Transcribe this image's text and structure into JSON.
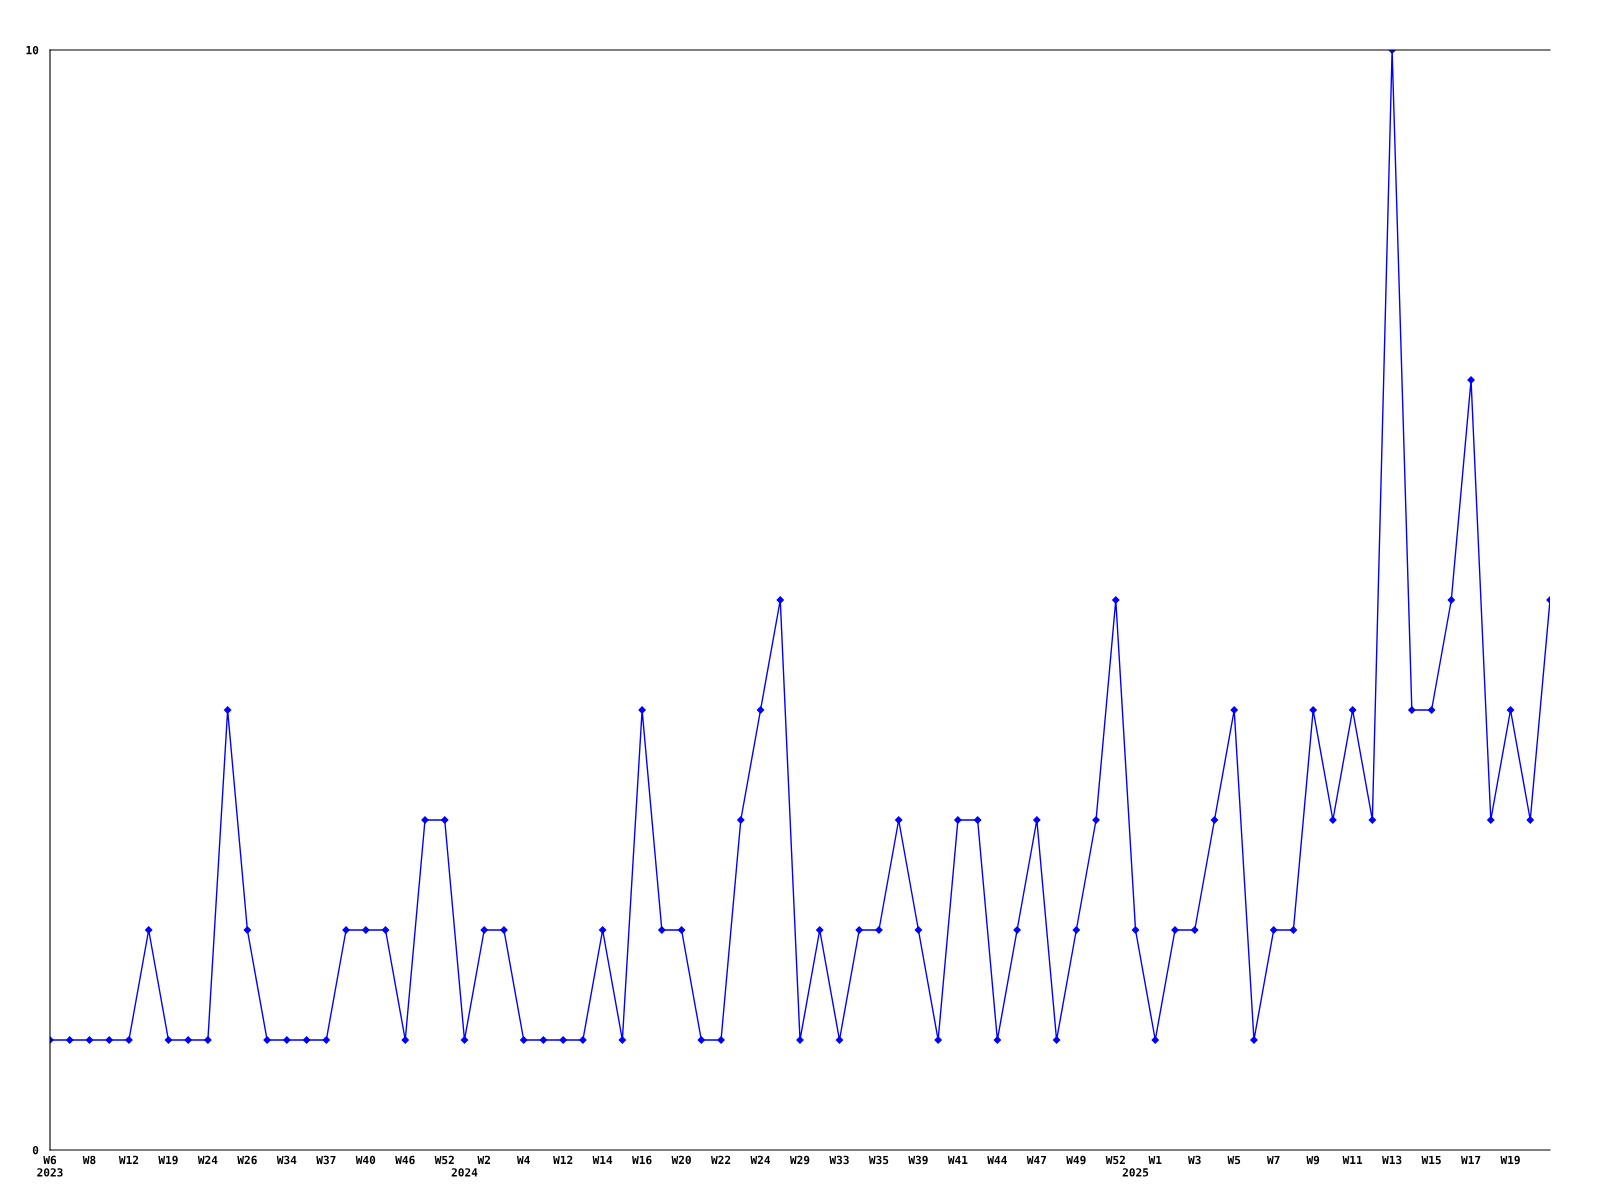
{
  "chart_data": {
    "type": "line",
    "categories": [
      "W6\n2023",
      null,
      "W8",
      null,
      "W12",
      null,
      "W19",
      null,
      "W24",
      null,
      "W26",
      null,
      "W34",
      null,
      "W37",
      null,
      "W40",
      null,
      "W46",
      null,
      "W52",
      "\n2024",
      "W2",
      null,
      "W4",
      null,
      "W12",
      null,
      "W14",
      null,
      "W16",
      null,
      "W20",
      null,
      "W22",
      null,
      "W24",
      null,
      "W29",
      null,
      "W33",
      null,
      "W35",
      null,
      "W39",
      null,
      "W41",
      null,
      "W44",
      null,
      "W47",
      null,
      "W49",
      null,
      "W52",
      "\n2025",
      "W1",
      null,
      "W3",
      null,
      "W5",
      null,
      "W7",
      null,
      "W9",
      null,
      "W11",
      null,
      "W13",
      null,
      "W15",
      null,
      "W17",
      null,
      "W19",
      null,
      null
    ],
    "series": [
      {
        "color": "#0000ff",
        "values": [
          1,
          1,
          1,
          1,
          1,
          2,
          1,
          1,
          1,
          4,
          2,
          1,
          1,
          1,
          1,
          2,
          2,
          2,
          1,
          3,
          3,
          1,
          2,
          2,
          1,
          1,
          1,
          1,
          2,
          1,
          4,
          2,
          2,
          1,
          1,
          3,
          4,
          5,
          1,
          2,
          1,
          2,
          2,
          3,
          2,
          1,
          3,
          3,
          1,
          2,
          3,
          1,
          2,
          3,
          5,
          2,
          1,
          2,
          2,
          3,
          4,
          1,
          2,
          2,
          4,
          3,
          4,
          3,
          10,
          4,
          4,
          5,
          7,
          3,
          4,
          3,
          5
        ]
      }
    ],
    "ylim": [
      0,
      10
    ],
    "yticks": [
      0,
      10
    ],
    "grid": false,
    "marker": "diamond",
    "line_style": "solid"
  }
}
